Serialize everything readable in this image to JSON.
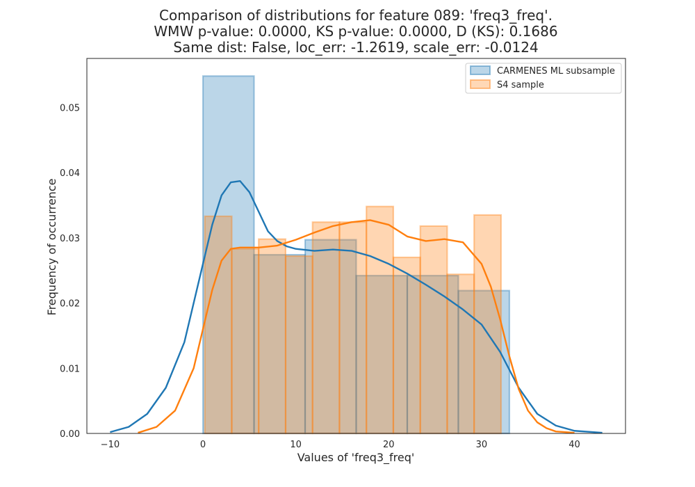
{
  "chart_data": {
    "type": "histogram",
    "title_lines": [
      "Comparison of distributions for feature 089: 'freq3_freq'.",
      "WMW p-value: 0.0000, KS p-value: 0.0000, D (KS): 0.1686",
      "Same dist: False, loc_err: -1.2619, scale_err: -0.0124"
    ],
    "xlabel": "Values of 'freq3_freq'",
    "ylabel": "Frequency of occurrence",
    "xlim": [
      -12.5,
      45.5
    ],
    "ylim": [
      0,
      0.0575
    ],
    "xticks": [
      -10,
      0,
      10,
      20,
      30,
      40
    ],
    "xtick_labels": [
      "−10",
      "0",
      "10",
      "20",
      "30",
      "40"
    ],
    "yticks": [
      0.0,
      0.01,
      0.02,
      0.03,
      0.04,
      0.05
    ],
    "ytick_labels": [
      "0.00",
      "0.01",
      "0.02",
      "0.03",
      "0.04",
      "0.05"
    ],
    "grid": false,
    "legend_position": "top-right",
    "series": [
      {
        "name": "CARMENES ML subsample",
        "color": "#1f77b4",
        "bins": [
          {
            "x0": 0.0,
            "x1": 5.5,
            "value": 0.0548
          },
          {
            "x0": 5.5,
            "x1": 11.0,
            "value": 0.0274
          },
          {
            "x0": 11.0,
            "x1": 16.5,
            "value": 0.0297
          },
          {
            "x0": 16.5,
            "x1": 22.0,
            "value": 0.0242
          },
          {
            "x0": 22.0,
            "x1": 27.5,
            "value": 0.0242
          },
          {
            "x0": 27.5,
            "x1": 33.0,
            "value": 0.0219
          }
        ],
        "kde": [
          [
            -10.0,
            0.0002
          ],
          [
            -8.0,
            0.001
          ],
          [
            -6.0,
            0.003
          ],
          [
            -4.0,
            0.007
          ],
          [
            -2.0,
            0.014
          ],
          [
            0.0,
            0.026
          ],
          [
            1.0,
            0.032
          ],
          [
            2.0,
            0.0365
          ],
          [
            3.0,
            0.0385
          ],
          [
            4.0,
            0.0387
          ],
          [
            5.0,
            0.037
          ],
          [
            6.0,
            0.034
          ],
          [
            7.0,
            0.031
          ],
          [
            8.0,
            0.0295
          ],
          [
            9.0,
            0.0287
          ],
          [
            10.0,
            0.0283
          ],
          [
            12.0,
            0.028
          ],
          [
            14.0,
            0.0282
          ],
          [
            16.0,
            0.028
          ],
          [
            18.0,
            0.0272
          ],
          [
            20.0,
            0.026
          ],
          [
            22.0,
            0.0245
          ],
          [
            24.0,
            0.0228
          ],
          [
            26.0,
            0.021
          ],
          [
            28.0,
            0.019
          ],
          [
            30.0,
            0.0167
          ],
          [
            32.0,
            0.0125
          ],
          [
            34.0,
            0.007
          ],
          [
            36.0,
            0.003
          ],
          [
            38.0,
            0.0012
          ],
          [
            40.0,
            0.0004
          ],
          [
            43.0,
            0.0001
          ]
        ]
      },
      {
        "name": "S4 sample",
        "color": "#ff7f0e",
        "bins": [
          {
            "x0": 0.2,
            "x1": 3.1,
            "value": 0.0333
          },
          {
            "x0": 3.1,
            "x1": 6.0,
            "value": 0.0283
          },
          {
            "x0": 6.0,
            "x1": 8.9,
            "value": 0.0298
          },
          {
            "x0": 8.9,
            "x1": 11.8,
            "value": 0.0272
          },
          {
            "x0": 11.8,
            "x1": 14.7,
            "value": 0.0324
          },
          {
            "x0": 14.7,
            "x1": 17.6,
            "value": 0.0324
          },
          {
            "x0": 17.6,
            "x1": 20.5,
            "value": 0.0348
          },
          {
            "x0": 20.5,
            "x1": 23.4,
            "value": 0.027
          },
          {
            "x0": 23.4,
            "x1": 26.3,
            "value": 0.0318
          },
          {
            "x0": 26.3,
            "x1": 29.2,
            "value": 0.0244
          },
          {
            "x0": 29.2,
            "x1": 32.1,
            "value": 0.0335
          }
        ],
        "kde": [
          [
            -7.0,
            0.0001
          ],
          [
            -5.0,
            0.001
          ],
          [
            -3.0,
            0.0035
          ],
          [
            -1.0,
            0.01
          ],
          [
            0.0,
            0.016
          ],
          [
            1.0,
            0.022
          ],
          [
            2.0,
            0.0265
          ],
          [
            3.0,
            0.0283
          ],
          [
            4.0,
            0.0285
          ],
          [
            6.0,
            0.0285
          ],
          [
            8.0,
            0.0288
          ],
          [
            10.0,
            0.0297
          ],
          [
            12.0,
            0.0308
          ],
          [
            14.0,
            0.0318
          ],
          [
            16.0,
            0.0324
          ],
          [
            18.0,
            0.0327
          ],
          [
            20.0,
            0.032
          ],
          [
            22.0,
            0.0302
          ],
          [
            24.0,
            0.0295
          ],
          [
            26.0,
            0.0298
          ],
          [
            28.0,
            0.0293
          ],
          [
            30.0,
            0.026
          ],
          [
            31.0,
            0.0225
          ],
          [
            32.0,
            0.0175
          ],
          [
            33.0,
            0.0118
          ],
          [
            34.0,
            0.0068
          ],
          [
            35.0,
            0.0035
          ],
          [
            36.0,
            0.0017
          ],
          [
            37.0,
            0.0008
          ],
          [
            38.0,
            0.0003
          ],
          [
            40.0,
            0.0001
          ]
        ]
      }
    ]
  }
}
